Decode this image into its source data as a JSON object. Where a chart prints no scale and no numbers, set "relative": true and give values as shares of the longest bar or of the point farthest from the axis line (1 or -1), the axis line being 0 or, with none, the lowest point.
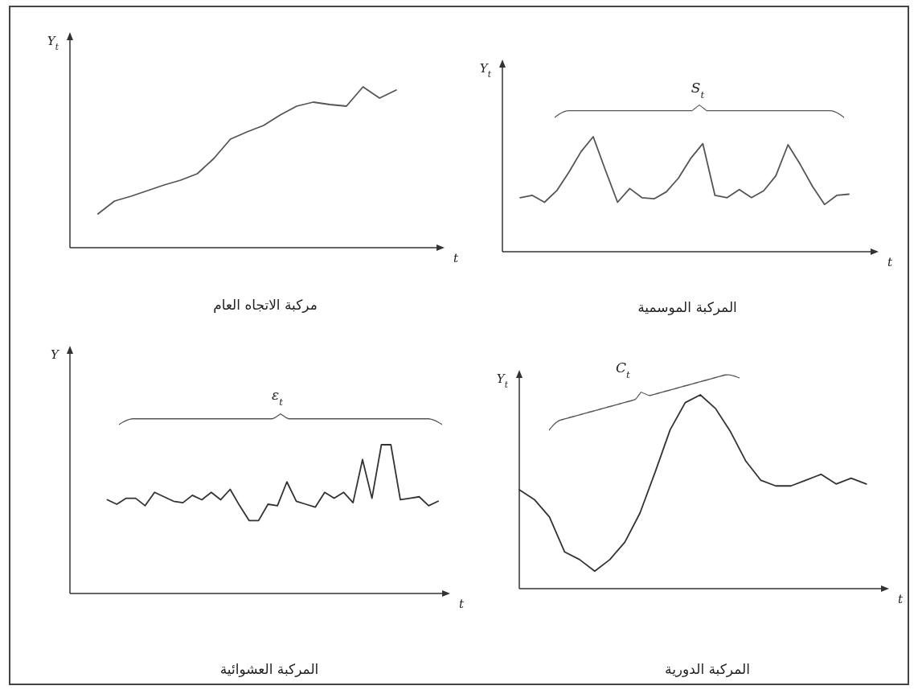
{
  "chart_data": [
    {
      "type": "line",
      "title": "مركبة الاتجاه العام",
      "ylabel": "Y$_{t}$",
      "xlabel": "t",
      "relative": true,
      "categories": [
        null,
        null,
        null,
        null,
        null,
        null,
        null,
        null,
        null,
        null,
        null,
        null,
        null,
        null,
        null,
        null,
        null,
        null,
        null
      ],
      "series": [
        {
          "color": "#555555",
          "values": [
            0.21,
            0.29,
            0.32,
            0.355,
            0.39,
            0.42,
            0.46,
            0.555,
            0.675,
            0.72,
            0.76,
            0.825,
            0.88,
            0.905,
            0.89,
            0.88,
            1,
            0.93,
            0.98
          ]
        }
      ]
    },
    {
      "type": "line",
      "title": "المركبة الموسمية",
      "ylabel": "Y$_{t}$",
      "xlabel": "t",
      "relative": true,
      "annotations": [
        "S$_{t}$"
      ],
      "categories": [
        null,
        null,
        null,
        null,
        null,
        null,
        null,
        null,
        null,
        null,
        null,
        null,
        null,
        null,
        null,
        null,
        null,
        null,
        null,
        null,
        null,
        null,
        null,
        null,
        null,
        null,
        null,
        null
      ],
      "series": [
        {
          "color": "#555555",
          "values": [
            0.47,
            0.49,
            0.43,
            0.53,
            0.69,
            0.87,
            1,
            0.71,
            0.43,
            0.55,
            0.47,
            0.46,
            0.52,
            0.64,
            0.81,
            0.94,
            0.49,
            0.47,
            0.54,
            0.47,
            0.53,
            0.66,
            0.93,
            0.76,
            0.57,
            0.41,
            0.49,
            0.5
          ]
        }
      ]
    },
    {
      "type": "line",
      "title": "المركبة العشوائية",
      "ylabel": "Y",
      "xlabel": "t",
      "relative": true,
      "annotations": [
        "ε$_{t}$"
      ],
      "categories": [
        null,
        null,
        null,
        null,
        null,
        null,
        null,
        null,
        null,
        null,
        null,
        null,
        null,
        null,
        null,
        null,
        null,
        null,
        null,
        null,
        null,
        null,
        null,
        null,
        null,
        null,
        null,
        null,
        null,
        null,
        null,
        null,
        null,
        null,
        null,
        null
      ],
      "series": [
        {
          "color": "#333333",
          "values": [
            0.63,
            0.6,
            0.64,
            0.64,
            0.59,
            0.68,
            0.65,
            0.62,
            0.61,
            0.66,
            0.63,
            0.68,
            0.63,
            0.7,
            0.59,
            0.49,
            0.49,
            0.6,
            0.59,
            0.75,
            0.62,
            0.6,
            0.58,
            0.68,
            0.64,
            0.68,
            0.61,
            0.9,
            0.64,
            1,
            1,
            0.63,
            0.64,
            0.65,
            0.59,
            0.62
          ]
        }
      ]
    },
    {
      "type": "line",
      "title": "المركبة الدورية",
      "ylabel": "Y$_{t}$",
      "xlabel": "t",
      "relative": true,
      "annotations": [
        "C$_{t}$"
      ],
      "categories": [
        null,
        null,
        null,
        null,
        null,
        null,
        null,
        null,
        null,
        null,
        null,
        null,
        null,
        null,
        null,
        null,
        null,
        null,
        null,
        null,
        null,
        null,
        null,
        null
      ],
      "series": [
        {
          "color": "#333333",
          "values": [
            0.51,
            0.46,
            0.37,
            0.19,
            0.15,
            0.09,
            0.15,
            0.24,
            0.39,
            0.6,
            0.82,
            0.96,
            1,
            0.93,
            0.81,
            0.66,
            0.56,
            0.53,
            0.53,
            0.56,
            0.59,
            0.54,
            0.57,
            0.54
          ]
        }
      ]
    }
  ]
}
